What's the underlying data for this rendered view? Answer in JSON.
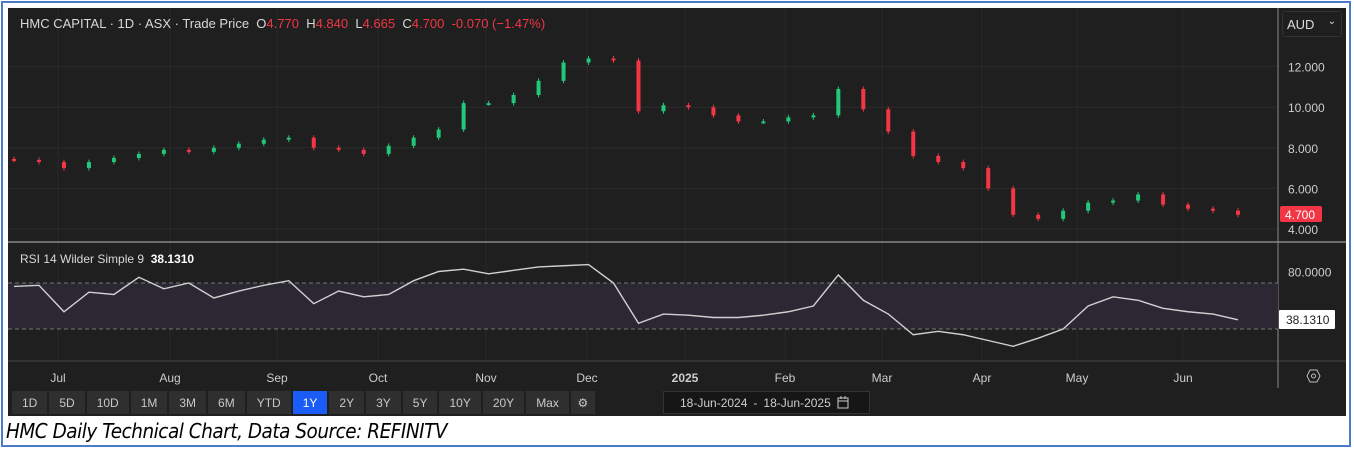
{
  "header": {
    "name": "HMC CAPITAL",
    "interval": "1D",
    "exchange": "ASX",
    "price_type": "Trade Price",
    "open_label": "O",
    "open": "4.770",
    "high_label": "H",
    "high": "4.840",
    "low_label": "L",
    "low": "4.665",
    "close_label": "C",
    "close": "4.700",
    "change": "-0.070 (−1.47%)"
  },
  "currency": "AUD",
  "rsi_header": {
    "label": "RSI 14 Wilder Simple 9",
    "value": "38.1310"
  },
  "toolbar": {
    "ranges": [
      "1D",
      "5D",
      "10D",
      "1M",
      "3M",
      "6M",
      "YTD",
      "1Y",
      "2Y",
      "3Y",
      "5Y",
      "10Y",
      "20Y",
      "Max"
    ],
    "active": "1Y",
    "date_from": "18-Jun-2024",
    "date_sep": "-",
    "date_to": "18-Jun-2025"
  },
  "caption": "HMC Daily Technical Chart, Data Source: REFINITV",
  "colors": {
    "up": "#22c77a",
    "down": "#f23645",
    "bg": "#1f1f1f"
  },
  "chart_data": [
    {
      "type": "candlestick",
      "title": "HMC CAPITAL price",
      "ylim": [
        4,
        13
      ],
      "y_ticks": [
        "12.000",
        "10.000",
        "8.000",
        "6.000",
        "4.000"
      ],
      "y_tick_values": [
        12,
        10,
        8,
        6,
        4
      ],
      "last_price_label": "4.700",
      "x_labels": [
        "Jul",
        "Aug",
        "Sep",
        "Oct",
        "Nov",
        "Dec",
        "2025",
        "Feb",
        "Mar",
        "Apr",
        "May",
        "Jun"
      ],
      "closes": [
        7.4,
        7.3,
        7.0,
        7.3,
        7.5,
        7.7,
        7.9,
        7.8,
        8.0,
        8.2,
        8.4,
        8.5,
        8.0,
        7.9,
        7.7,
        8.1,
        8.5,
        8.9,
        10.2,
        10.2,
        10.6,
        11.3,
        12.2,
        12.4,
        12.3,
        9.8,
        10.1,
        10.0,
        9.6,
        9.3,
        9.3,
        9.5,
        9.6,
        10.9,
        9.9,
        8.8,
        7.6,
        7.3,
        7.0,
        6.0,
        4.7,
        4.5,
        4.9,
        5.3,
        5.4,
        5.7,
        5.2,
        5.0,
        4.9,
        4.7
      ]
    },
    {
      "type": "line",
      "title": "RSI 14 Wilder Simple 9",
      "ylim": [
        0,
        100
      ],
      "bands": [
        30,
        70
      ],
      "y_ticks": [
        "80.0000"
      ],
      "y_tick_values": [
        80
      ],
      "last_value_label": "38.1310",
      "values": [
        67,
        68,
        45,
        62,
        60,
        75,
        65,
        70,
        57,
        63,
        68,
        72,
        52,
        63,
        58,
        60,
        72,
        80,
        82,
        78,
        81,
        84,
        85,
        86,
        70,
        35,
        43,
        42,
        40,
        40,
        42,
        45,
        50,
        77,
        55,
        43,
        25,
        28,
        25,
        20,
        15,
        22,
        30,
        50,
        58,
        55,
        48,
        45,
        43,
        38
      ]
    }
  ]
}
